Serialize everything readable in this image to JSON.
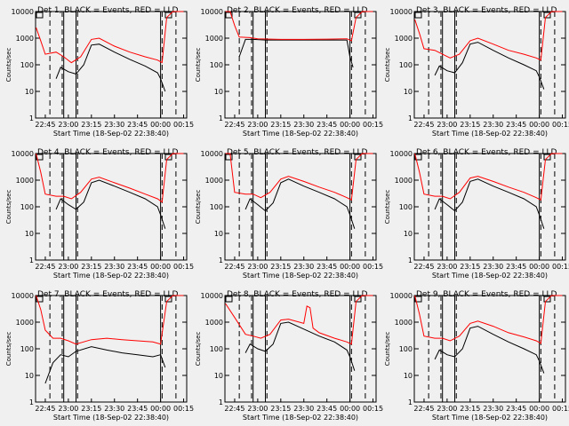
{
  "figure": {
    "background": "#f0f0f0",
    "axis_color": "#000000",
    "events_color": "#000000",
    "lld_color": "#ff0000",
    "y_axis_label": "Counts/sec",
    "x_axis_label": "Start Time (18-Sep-02 22:38:40)"
  },
  "chart_data": [
    {
      "type": "line",
      "title": "Det 1, BLACK = Events, RED = LLD",
      "xlabel": "Start Time (18-Sep-02 22:38:40)",
      "ylabel": "Counts/sec",
      "y_scale": "log",
      "ylim": [
        1,
        10000
      ],
      "x_tick_labels": [
        "22:45",
        "23:00",
        "23:15",
        "23:30",
        "23:45",
        "00:00",
        "00:15"
      ],
      "y_tick_labels": [
        "1",
        "10",
        "100",
        "1000",
        "10000"
      ],
      "solid_vlines": [
        "22:57",
        "23:05",
        "00:00"
      ],
      "dashed_vlines": [
        "22:48",
        "22:56",
        "23:06",
        "00:01",
        "00:10"
      ],
      "series": [
        {
          "name": "Events",
          "color": "#000000",
          "x": [
            "22:52",
            "22:55",
            "23:00",
            "23:05",
            "23:10",
            "23:15",
            "23:20",
            "23:30",
            "23:40",
            "23:50",
            "23:58",
            "00:00",
            "00:03"
          ],
          "y": [
            30,
            80,
            55,
            45,
            100,
            550,
            600,
            300,
            160,
            90,
            50,
            30,
            10
          ]
        },
        {
          "name": "LLD",
          "color": "#ff0000",
          "x": [
            "22:39",
            "22:42",
            "22:45",
            "22:52",
            "22:57",
            "23:02",
            "23:08",
            "23:15",
            "23:20",
            "23:30",
            "23:40",
            "23:50",
            "23:58",
            "00:01",
            "00:04",
            "00:08",
            "00:12",
            "00:15"
          ],
          "y": [
            2500,
            800,
            250,
            300,
            200,
            120,
            200,
            900,
            1000,
            500,
            300,
            200,
            150,
            120,
            6000,
            10000,
            10000,
            10000
          ]
        }
      ]
    },
    {
      "type": "line",
      "title": "Det 2, BLACK = Events, RED = LLD",
      "xlabel": "Start Time (18-Sep-02 22:38:40)",
      "ylabel": "Counts/sec",
      "y_scale": "log",
      "ylim": [
        1,
        10000
      ],
      "x_tick_labels": [
        "22:45",
        "23:00",
        "23:15",
        "23:30",
        "23:45",
        "00:00",
        "00:15"
      ],
      "y_tick_labels": [
        "1",
        "10",
        "100",
        "1000",
        "10000"
      ],
      "solid_vlines": [
        "22:57",
        "23:05",
        "00:00"
      ],
      "dashed_vlines": [
        "22:48",
        "22:56",
        "23:06",
        "00:01",
        "00:10"
      ],
      "series": [
        {
          "name": "Events",
          "color": "#000000",
          "x": [
            "22:48",
            "22:52",
            "22:57",
            "23:05",
            "23:15",
            "23:30",
            "23:45",
            "23:58",
            "00:00",
            "00:02"
          ],
          "y": [
            200,
            900,
            900,
            850,
            850,
            850,
            850,
            850,
            200,
            80
          ]
        },
        {
          "name": "LLD",
          "color": "#ff0000",
          "x": [
            "22:39",
            "22:42",
            "22:45",
            "22:48",
            "22:55",
            "23:00",
            "23:15",
            "23:30",
            "23:45",
            "23:58",
            "00:01",
            "00:04",
            "00:08",
            "00:12",
            "00:15"
          ],
          "y": [
            10000,
            10000,
            3000,
            1100,
            1050,
            950,
            900,
            900,
            920,
            950,
            800,
            6000,
            10000,
            10000,
            10000
          ]
        }
      ]
    },
    {
      "type": "line",
      "title": "Det 3, BLACK = Events, RED = LLD",
      "xlabel": "Start Time (18-Sep-02 22:38:40)",
      "ylabel": "Counts/sec",
      "y_scale": "log",
      "ylim": [
        1,
        10000
      ],
      "x_tick_labels": [
        "22:45",
        "23:00",
        "23:15",
        "23:30",
        "23:45",
        "00:00",
        "00:15"
      ],
      "y_tick_labels": [
        "1",
        "10",
        "100",
        "1000",
        "10000"
      ],
      "solid_vlines": [
        "22:57",
        "23:05",
        "00:00"
      ],
      "dashed_vlines": [
        "22:48",
        "22:56",
        "23:06",
        "00:01",
        "00:10"
      ],
      "series": [
        {
          "name": "Events",
          "color": "#000000",
          "x": [
            "22:52",
            "22:55",
            "23:00",
            "23:05",
            "23:10",
            "23:15",
            "23:20",
            "23:30",
            "23:40",
            "23:50",
            "23:58",
            "00:00",
            "00:03"
          ],
          "y": [
            40,
            90,
            60,
            50,
            120,
            600,
            700,
            350,
            180,
            100,
            60,
            35,
            12
          ]
        },
        {
          "name": "LLD",
          "color": "#ff0000",
          "x": [
            "22:39",
            "22:42",
            "22:45",
            "22:52",
            "22:57",
            "23:02",
            "23:08",
            "23:15",
            "23:20",
            "23:30",
            "23:40",
            "23:50",
            "23:58",
            "00:01",
            "00:04",
            "00:08",
            "00:12",
            "00:15"
          ],
          "y": [
            5000,
            1500,
            400,
            350,
            250,
            180,
            250,
            800,
            1000,
            600,
            350,
            250,
            180,
            150,
            6000,
            10000,
            10000,
            10000
          ]
        }
      ]
    },
    {
      "type": "line",
      "title": "Det 4, BLACK = Events, RED = LLD",
      "xlabel": "Start Time (18-Sep-02 22:38:40)",
      "ylabel": "Counts/sec",
      "y_scale": "log",
      "ylim": [
        1,
        10000
      ],
      "x_tick_labels": [
        "22:45",
        "23:00",
        "23:15",
        "23:30",
        "23:45",
        "00:00",
        "00:15"
      ],
      "y_tick_labels": [
        "1",
        "10",
        "100",
        "1000",
        "10000"
      ],
      "solid_vlines": [
        "22:57",
        "23:05",
        "00:00"
      ],
      "dashed_vlines": [
        "22:48",
        "22:56",
        "23:06",
        "00:01",
        "00:10"
      ],
      "series": [
        {
          "name": "Events",
          "color": "#000000",
          "x": [
            "22:52",
            "22:55",
            "23:00",
            "23:05",
            "23:10",
            "23:15",
            "23:20",
            "23:30",
            "23:40",
            "23:50",
            "23:58",
            "00:00",
            "00:03"
          ],
          "y": [
            80,
            200,
            120,
            80,
            150,
            800,
            1000,
            600,
            350,
            200,
            100,
            50,
            15
          ]
        },
        {
          "name": "LLD",
          "color": "#ff0000",
          "x": [
            "22:39",
            "22:42",
            "22:45",
            "22:52",
            "22:57",
            "23:02",
            "23:08",
            "23:15",
            "23:20",
            "23:30",
            "23:40",
            "23:50",
            "23:58",
            "00:01",
            "00:04",
            "00:08",
            "00:12",
            "00:15"
          ],
          "y": [
            10000,
            2000,
            300,
            250,
            250,
            200,
            350,
            1100,
            1300,
            800,
            500,
            300,
            200,
            150,
            6000,
            10000,
            10000,
            10000
          ]
        }
      ]
    },
    {
      "type": "line",
      "title": "Det 5, BLACK = Events, RED = LLD",
      "xlabel": "Start Time (18-Sep-02 22:38:40)",
      "ylabel": "Counts/sec",
      "y_scale": "log",
      "ylim": [
        1,
        10000
      ],
      "x_tick_labels": [
        "22:45",
        "23:00",
        "23:15",
        "23:30",
        "23:45",
        "00:00",
        "00:15"
      ],
      "y_tick_labels": [
        "1",
        "10",
        "100",
        "1000",
        "10000"
      ],
      "solid_vlines": [
        "22:57",
        "23:05",
        "00:00"
      ],
      "dashed_vlines": [
        "22:48",
        "22:56",
        "23:06",
        "00:01",
        "00:10"
      ],
      "series": [
        {
          "name": "Events",
          "color": "#000000",
          "x": [
            "22:52",
            "22:55",
            "23:00",
            "23:05",
            "23:10",
            "23:15",
            "23:20",
            "23:30",
            "23:40",
            "23:50",
            "23:58",
            "00:00",
            "00:03"
          ],
          "y": [
            80,
            200,
            120,
            70,
            140,
            800,
            1100,
            600,
            350,
            200,
            100,
            50,
            15
          ]
        },
        {
          "name": "LLD",
          "color": "#ff0000",
          "x": [
            "22:39",
            "22:42",
            "22:45",
            "22:52",
            "22:57",
            "23:02",
            "23:08",
            "23:15",
            "23:20",
            "23:30",
            "23:40",
            "23:50",
            "23:58",
            "00:01",
            "00:04",
            "00:08",
            "00:12",
            "00:15"
          ],
          "y": [
            10000,
            10000,
            350,
            300,
            300,
            220,
            350,
            1100,
            1400,
            900,
            550,
            350,
            220,
            180,
            6000,
            10000,
            10000,
            10000
          ]
        }
      ]
    },
    {
      "type": "line",
      "title": "Det 6, BLACK = Events, RED = LLD",
      "xlabel": "Start Time (18-Sep-02 22:38:40)",
      "ylabel": "Counts/sec",
      "y_scale": "log",
      "ylim": [
        1,
        10000
      ],
      "x_tick_labels": [
        "22:45",
        "23:00",
        "23:15",
        "23:30",
        "23:45",
        "00:00",
        "00:15"
      ],
      "y_tick_labels": [
        "1",
        "10",
        "100",
        "1000",
        "10000"
      ],
      "solid_vlines": [
        "22:57",
        "23:05",
        "00:00"
      ],
      "dashed_vlines": [
        "22:48",
        "22:56",
        "23:06",
        "00:01",
        "00:10"
      ],
      "series": [
        {
          "name": "Events",
          "color": "#000000",
          "x": [
            "22:52",
            "22:55",
            "23:00",
            "23:05",
            "23:10",
            "23:15",
            "23:20",
            "23:30",
            "23:40",
            "23:50",
            "23:58",
            "00:00",
            "00:03"
          ],
          "y": [
            80,
            200,
            120,
            70,
            150,
            900,
            1100,
            600,
            350,
            200,
            100,
            50,
            15
          ]
        },
        {
          "name": "LLD",
          "color": "#ff0000",
          "x": [
            "22:39",
            "22:42",
            "22:45",
            "22:52",
            "22:57",
            "23:02",
            "23:08",
            "23:15",
            "23:20",
            "23:30",
            "23:40",
            "23:50",
            "23:58",
            "00:01",
            "00:04",
            "00:08",
            "00:12",
            "00:15"
          ],
          "y": [
            10000,
            2000,
            300,
            250,
            250,
            200,
            350,
            1200,
            1400,
            900,
            550,
            350,
            220,
            180,
            6000,
            10000,
            10000,
            10000
          ]
        }
      ]
    },
    {
      "type": "line",
      "title": "Det 7, BLACK = Events, RED = LLD",
      "xlabel": "Start Time (18-Sep-02 22:38:40)",
      "ylabel": "Counts/sec",
      "y_scale": "log",
      "ylim": [
        1,
        10000
      ],
      "x_tick_labels": [
        "22:45",
        "23:00",
        "23:15",
        "23:30",
        "23:45",
        "00:00",
        "00:15"
      ],
      "y_tick_labels": [
        "1",
        "10",
        "100",
        "1000",
        "10000"
      ],
      "solid_vlines": [
        "22:57",
        "23:05",
        "00:00"
      ],
      "dashed_vlines": [
        "22:48",
        "22:56",
        "23:06",
        "00:01",
        "00:10"
      ],
      "series": [
        {
          "name": "Events",
          "color": "#000000",
          "x": [
            "22:45",
            "22:50",
            "22:55",
            "23:00",
            "23:05",
            "23:15",
            "23:25",
            "23:35",
            "23:45",
            "23:55",
            "00:00",
            "00:03"
          ],
          "y": [
            5,
            30,
            60,
            50,
            80,
            120,
            90,
            70,
            60,
            50,
            60,
            20
          ]
        },
        {
          "name": "LLD",
          "color": "#ff0000",
          "x": [
            "22:39",
            "22:42",
            "22:45",
            "22:50",
            "22:55",
            "23:00",
            "23:05",
            "23:15",
            "23:25",
            "23:35",
            "23:45",
            "23:55",
            "00:00",
            "00:04",
            "00:08",
            "00:12",
            "00:15"
          ],
          "y": [
            10000,
            3000,
            500,
            250,
            250,
            200,
            150,
            220,
            250,
            220,
            200,
            180,
            150,
            6000,
            10000,
            10000,
            10000
          ]
        }
      ]
    },
    {
      "type": "line",
      "title": "Det 8, BLACK = Events, RED = LLD",
      "xlabel": "Start Time (18-Sep-02 22:38:40)",
      "ylabel": "Counts/sec",
      "y_scale": "log",
      "ylim": [
        1,
        10000
      ],
      "x_tick_labels": [
        "22:45",
        "23:00",
        "23:15",
        "23:30",
        "23:45",
        "00:00",
        "00:15"
      ],
      "y_tick_labels": [
        "1",
        "10",
        "100",
        "1000",
        "10000"
      ],
      "solid_vlines": [
        "22:57",
        "23:05",
        "00:00"
      ],
      "dashed_vlines": [
        "22:48",
        "22:56",
        "23:06",
        "00:01",
        "00:10"
      ],
      "series": [
        {
          "name": "Events",
          "color": "#000000",
          "x": [
            "22:52",
            "22:55",
            "23:00",
            "23:05",
            "23:10",
            "23:15",
            "23:20",
            "23:30",
            "23:40",
            "23:50",
            "23:58",
            "00:00",
            "00:03"
          ],
          "y": [
            70,
            150,
            100,
            80,
            150,
            900,
            1000,
            550,
            300,
            180,
            90,
            50,
            15
          ]
        },
        {
          "name": "LLD",
          "color": "#ff0000",
          "x": [
            "22:39",
            "22:45",
            "22:52",
            "22:57",
            "23:02",
            "23:08",
            "23:15",
            "23:20",
            "23:30",
            "23:32",
            "23:34",
            "23:36",
            "23:40",
            "23:50",
            "23:58",
            "00:01",
            "00:04",
            "00:08",
            "00:12",
            "00:15"
          ],
          "y": [
            5000,
            1500,
            350,
            300,
            250,
            350,
            1200,
            1300,
            900,
            4000,
            3500,
            600,
            400,
            250,
            180,
            150,
            6000,
            10000,
            10000,
            10000
          ]
        }
      ]
    },
    {
      "type": "line",
      "title": "Det 9, BLACK = Events, RED = LLD",
      "xlabel": "Start Time (18-Sep-02 22:38:40)",
      "ylabel": "Counts/sec",
      "y_scale": "log",
      "ylim": [
        1,
        10000
      ],
      "x_tick_labels": [
        "22:45",
        "23:00",
        "23:15",
        "23:30",
        "23:45",
        "00:00",
        "00:15"
      ],
      "y_tick_labels": [
        "1",
        "10",
        "100",
        "1000",
        "10000"
      ],
      "solid_vlines": [
        "22:57",
        "23:05",
        "00:00"
      ],
      "dashed_vlines": [
        "22:48",
        "22:56",
        "23:06",
        "00:01",
        "00:10"
      ],
      "series": [
        {
          "name": "Events",
          "color": "#000000",
          "x": [
            "22:52",
            "22:55",
            "23:00",
            "23:05",
            "23:10",
            "23:15",
            "23:20",
            "23:30",
            "23:40",
            "23:50",
            "23:58",
            "00:00",
            "00:03"
          ],
          "y": [
            40,
            90,
            60,
            50,
            100,
            600,
            700,
            350,
            180,
            100,
            60,
            35,
            12
          ]
        },
        {
          "name": "LLD",
          "color": "#ff0000",
          "x": [
            "22:39",
            "22:42",
            "22:45",
            "22:52",
            "22:57",
            "23:02",
            "23:08",
            "23:15",
            "23:20",
            "23:30",
            "23:40",
            "23:50",
            "23:58",
            "00:01",
            "00:04",
            "00:08",
            "00:12",
            "00:15"
          ],
          "y": [
            10000,
            2000,
            300,
            250,
            250,
            200,
            300,
            900,
            1100,
            700,
            400,
            280,
            200,
            160,
            6000,
            10000,
            10000,
            10000
          ]
        }
      ]
    }
  ]
}
